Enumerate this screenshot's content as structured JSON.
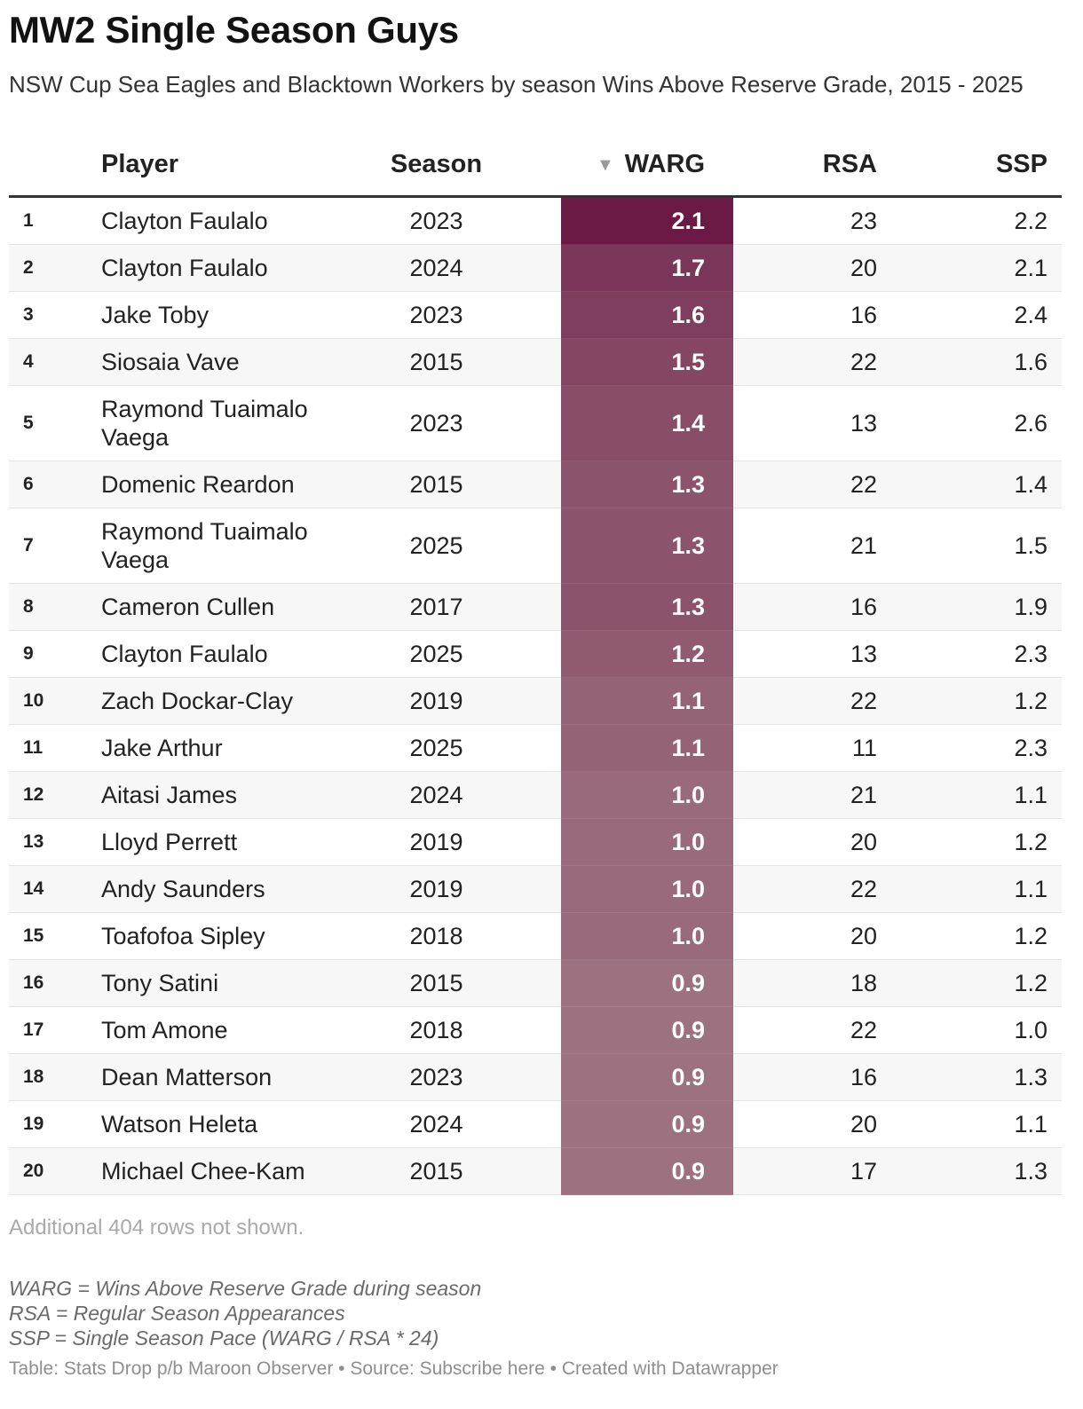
{
  "title": "MW2 Single Season Guys",
  "subtitle": "NSW Cup Sea Eagles and Blacktown Workers by season Wins Above Reserve Grade, 2015 - 2025",
  "columns": {
    "rank": "",
    "player": "Player",
    "season": "Season",
    "warg": "WARG",
    "rsa": "RSA",
    "ssp": "SSP"
  },
  "sort_indicator": "▼",
  "colors": {
    "warg_high": "#6b1a45",
    "warg_low": "#9c7180",
    "header_rule": "#333333"
  },
  "chart_data": {
    "type": "table",
    "sorted_by": "WARG",
    "sort_order": "descending",
    "rows": [
      {
        "rank": "1",
        "player": "Clayton Faulalo",
        "season": "2023",
        "warg": "2.1",
        "rsa": "23",
        "ssp": "2.2"
      },
      {
        "rank": "2",
        "player": "Clayton Faulalo",
        "season": "2024",
        "warg": "1.7",
        "rsa": "20",
        "ssp": "2.1"
      },
      {
        "rank": "3",
        "player": "Jake Toby",
        "season": "2023",
        "warg": "1.6",
        "rsa": "16",
        "ssp": "2.4"
      },
      {
        "rank": "4",
        "player": "Siosaia Vave",
        "season": "2015",
        "warg": "1.5",
        "rsa": "22",
        "ssp": "1.6"
      },
      {
        "rank": "5",
        "player": "Raymond Tuaimalo Vaega",
        "season": "2023",
        "warg": "1.4",
        "rsa": "13",
        "ssp": "2.6"
      },
      {
        "rank": "6",
        "player": "Domenic Reardon",
        "season": "2015",
        "warg": "1.3",
        "rsa": "22",
        "ssp": "1.4"
      },
      {
        "rank": "7",
        "player": "Raymond Tuaimalo Vaega",
        "season": "2025",
        "warg": "1.3",
        "rsa": "21",
        "ssp": "1.5"
      },
      {
        "rank": "8",
        "player": "Cameron Cullen",
        "season": "2017",
        "warg": "1.3",
        "rsa": "16",
        "ssp": "1.9"
      },
      {
        "rank": "9",
        "player": "Clayton Faulalo",
        "season": "2025",
        "warg": "1.2",
        "rsa": "13",
        "ssp": "2.3"
      },
      {
        "rank": "10",
        "player": "Zach Dockar-Clay",
        "season": "2019",
        "warg": "1.1",
        "rsa": "22",
        "ssp": "1.2"
      },
      {
        "rank": "11",
        "player": "Jake Arthur",
        "season": "2025",
        "warg": "1.1",
        "rsa": "11",
        "ssp": "2.3"
      },
      {
        "rank": "12",
        "player": "Aitasi James",
        "season": "2024",
        "warg": "1.0",
        "rsa": "21",
        "ssp": "1.1"
      },
      {
        "rank": "13",
        "player": "Lloyd Perrett",
        "season": "2019",
        "warg": "1.0",
        "rsa": "20",
        "ssp": "1.2"
      },
      {
        "rank": "14",
        "player": "Andy Saunders",
        "season": "2019",
        "warg": "1.0",
        "rsa": "22",
        "ssp": "1.1"
      },
      {
        "rank": "15",
        "player": "Toafofoa Sipley",
        "season": "2018",
        "warg": "1.0",
        "rsa": "20",
        "ssp": "1.2"
      },
      {
        "rank": "16",
        "player": "Tony Satini",
        "season": "2015",
        "warg": "0.9",
        "rsa": "18",
        "ssp": "1.2"
      },
      {
        "rank": "17",
        "player": "Tom Amone",
        "season": "2018",
        "warg": "0.9",
        "rsa": "22",
        "ssp": "1.0"
      },
      {
        "rank": "18",
        "player": "Dean Matterson",
        "season": "2023",
        "warg": "0.9",
        "rsa": "16",
        "ssp": "1.3"
      },
      {
        "rank": "19",
        "player": "Watson Heleta",
        "season": "2024",
        "warg": "0.9",
        "rsa": "20",
        "ssp": "1.1"
      },
      {
        "rank": "20",
        "player": "Michael Chee-Kam",
        "season": "2015",
        "warg": "0.9",
        "rsa": "17",
        "ssp": "1.3"
      }
    ]
  },
  "more_rows_note": "Additional 404 rows not shown.",
  "notes": [
    "WARG = Wins Above Reserve Grade during season",
    "RSA = Regular Season Appearances",
    "SSP = Single Season Pace (WARG / RSA * 24)"
  ],
  "footer": "Table: Stats Drop p/b Maroon Observer • Source: Subscribe here • Created with Datawrapper"
}
